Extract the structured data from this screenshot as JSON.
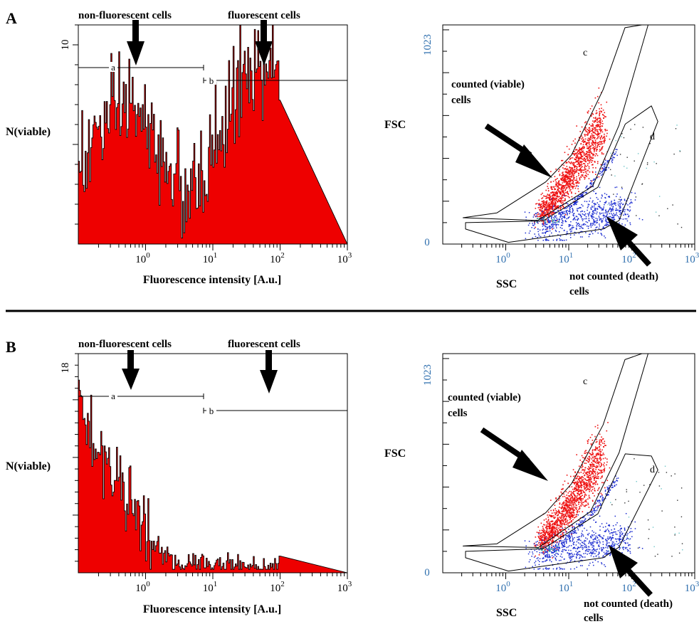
{
  "colors": {
    "histogram_fill": "#ee0000",
    "viable_dots": "#ee1111",
    "death_dots": "#1a2bd0",
    "scatter_axis_text": "#2f6fae",
    "axis": "#000000"
  },
  "separator": true,
  "panels": [
    {
      "letter": "A",
      "histogram": {
        "ylabel": "N(viable)",
        "xlabel": "Fluorescence intensity [A.u.]",
        "ymax_label": "10",
        "x_ticks": [
          {
            "base": "10",
            "exp": "0"
          },
          {
            "base": "10",
            "exp": "1"
          },
          {
            "base": "10",
            "exp": "2"
          },
          {
            "base": "10",
            "exp": "3"
          }
        ],
        "arrow_labels": [
          "non-fluorescent cells",
          "fluorescent cells"
        ],
        "gate_labels": [
          "a",
          "b"
        ]
      },
      "scatter": {
        "ylabel": "FSC",
        "xlabel": "SSC",
        "y_ticks": [
          "0",
          "1023"
        ],
        "x_ticks": [
          {
            "base": "10",
            "exp": "0"
          },
          {
            "base": "10",
            "exp": "1"
          },
          {
            "base": "10",
            "exp": "2"
          },
          {
            "base": "10",
            "exp": "3"
          }
        ],
        "gate_labels": [
          "c",
          "d"
        ],
        "counted_label": [
          "counted (viable)",
          "cells"
        ],
        "not_counted_label": [
          "not counted (death)",
          "cells"
        ]
      }
    },
    {
      "letter": "B",
      "histogram": {
        "ylabel": "N(viable)",
        "xlabel": "Fluorescence intensity [A.u.]",
        "ymax_label": "18",
        "x_ticks": [
          {
            "base": "10",
            "exp": "0"
          },
          {
            "base": "10",
            "exp": "1"
          },
          {
            "base": "10",
            "exp": "2"
          },
          {
            "base": "10",
            "exp": "3"
          }
        ],
        "arrow_labels": [
          "non-fluorescent cells",
          "fluorescent cells"
        ],
        "gate_labels": [
          "a",
          "b"
        ]
      },
      "scatter": {
        "ylabel": "FSC",
        "xlabel": "SSC",
        "y_ticks": [
          "0",
          "1023"
        ],
        "x_ticks": [
          {
            "base": "10",
            "exp": "0"
          },
          {
            "base": "10",
            "exp": "1"
          },
          {
            "base": "10",
            "exp": "2"
          },
          {
            "base": "10",
            "exp": "3"
          }
        ],
        "gate_labels": [
          "c",
          "d"
        ],
        "counted_label": [
          "counted (viable)",
          "cells"
        ],
        "not_counted_label": [
          "not counted (death)",
          "cells"
        ]
      }
    }
  ],
  "chart_data": [
    {
      "type": "bar",
      "panel": "A",
      "xlabel": "Fluorescence intensity [A.u.]",
      "ylabel": "N(viable)",
      "x_scale": "log",
      "xlim": [
        0.1,
        1000
      ],
      "ylim": [
        0,
        11
      ],
      "gates": [
        {
          "name": "a",
          "x_range": [
            0.1,
            8
          ]
        },
        {
          "name": "b",
          "x_range": [
            8,
            1000
          ]
        }
      ],
      "bins_log_start": -0.95,
      "bins_log_step": 0.1,
      "values": [
        4.6,
        4.1,
        5.7,
        6.0,
        5.7,
        6.4,
        6.8,
        7.2,
        7.0,
        6.1,
        5.3,
        4.8,
        4.3,
        4.4,
        3.2,
        2.2,
        2.6,
        2.4,
        3.4,
        4.3,
        5.1,
        6.1,
        6.3,
        7.8,
        8.4,
        8.5,
        9.1,
        8.6,
        8.6,
        7.8
      ],
      "annotations": [
        "non-fluorescent cells",
        "fluorescent cells"
      ]
    },
    {
      "type": "scatter",
      "panel": "A",
      "xlabel": "SSC",
      "ylabel": "FSC",
      "x_scale": "log",
      "xlim": [
        0.1,
        1000
      ],
      "ylim": [
        0,
        1023
      ],
      "gates": [
        {
          "name": "c",
          "label": "counted (viable) cells",
          "polygon": [
            [
              0.21,
              123
            ],
            [
              3.2,
              110
            ],
            [
              24,
              270
            ],
            [
              63,
              555
            ],
            [
              182,
              1023
            ],
            [
              145,
              1045
            ],
            [
              78,
              1010
            ],
            [
              35,
              720
            ],
            [
              11,
              415
            ],
            [
              4.3,
              290
            ],
            [
              0.72,
              145
            ]
          ]
        },
        {
          "name": "d",
          "label": "not counted (death) cells",
          "polygon": [
            [
              0.23,
              100
            ],
            [
              3.9,
              108
            ],
            [
              29,
              265
            ],
            [
              79,
              560
            ],
            [
              205,
              645
            ],
            [
              260,
              572
            ],
            [
              63,
              110
            ],
            [
              35,
              70
            ],
            [
              1.1,
              8
            ],
            [
              0.23,
              70
            ]
          ]
        }
      ],
      "series": [
        {
          "name": "c",
          "color": "#ee1111",
          "points": [
            [
              3.6,
              120
            ],
            [
              5,
              170
            ],
            [
              7,
              230
            ],
            [
              10,
              300
            ],
            [
              14,
              380
            ],
            [
              20,
              450
            ],
            [
              30,
              520
            ]
          ]
        },
        {
          "name": "d",
          "color": "#1a2bd0",
          "points": [
            [
              2.2,
              95
            ],
            [
              4,
              80
            ],
            [
              8,
              60
            ],
            [
              15,
              130
            ],
            [
              25,
              160
            ],
            [
              40,
              200
            ],
            [
              60,
              250
            ]
          ]
        }
      ]
    },
    {
      "type": "bar",
      "panel": "B",
      "xlabel": "Fluorescence intensity [A.u.]",
      "ylabel": "N(viable)",
      "x_scale": "log",
      "xlim": [
        0.1,
        1000
      ],
      "ylim": [
        0,
        19
      ],
      "gates": [
        {
          "name": "a",
          "x_range": [
            0.1,
            8
          ]
        },
        {
          "name": "b",
          "x_range": [
            8,
            1000
          ]
        }
      ],
      "bins_log_start": -0.95,
      "bins_log_step": 0.1,
      "values": [
        14.5,
        13.0,
        11.2,
        10.0,
        9.0,
        9.0,
        7.8,
        6.3,
        5.5,
        4.8,
        3.8,
        2.3,
        1.4,
        1.0,
        0.9,
        0.8,
        0.9,
        0.8,
        0.9,
        0.7,
        1.0,
        0.7,
        0.8,
        0.6,
        0.7,
        0.6,
        0.5,
        0.5,
        0.5,
        0.4
      ],
      "annotations": [
        "non-fluorescent cells",
        "fluorescent cells"
      ]
    },
    {
      "type": "scatter",
      "panel": "B",
      "xlabel": "SSC",
      "ylabel": "FSC",
      "x_scale": "log",
      "xlim": [
        0.1,
        1000
      ],
      "ylim": [
        0,
        1023
      ],
      "gates": [
        {
          "name": "c",
          "label": "counted (viable) cells",
          "polygon": [
            [
              0.21,
              125
            ],
            [
              3.3,
              118
            ],
            [
              22,
              285
            ],
            [
              63,
              560
            ],
            [
              182,
              1023
            ],
            [
              145,
              1035
            ],
            [
              78,
              995
            ],
            [
              35,
              690
            ],
            [
              11,
              415
            ],
            [
              4.3,
              280
            ],
            [
              0.72,
              135
            ]
          ]
        },
        {
          "name": "d",
          "label": "not counted (death) cells",
          "polygon": [
            [
              0.23,
              100
            ],
            [
              3.9,
              112
            ],
            [
              29,
              275
            ],
            [
              79,
              555
            ],
            [
              205,
              545
            ],
            [
              260,
              480
            ],
            [
              63,
              120
            ],
            [
              35,
              70
            ],
            [
              1.1,
              8
            ],
            [
              0.23,
              70
            ]
          ]
        }
      ],
      "series": [
        {
          "name": "c",
          "color": "#ee1111",
          "points": [
            [
              3.6,
              120
            ],
            [
              5,
              170
            ],
            [
              7,
              230
            ],
            [
              10,
              300
            ],
            [
              14,
              380
            ],
            [
              20,
              450
            ],
            [
              30,
              520
            ]
          ]
        },
        {
          "name": "d",
          "color": "#1a2bd0",
          "points": [
            [
              2.2,
              95
            ],
            [
              4,
              80
            ],
            [
              8,
              60
            ],
            [
              15,
              130
            ],
            [
              25,
              160
            ],
            [
              40,
              200
            ],
            [
              60,
              250
            ]
          ]
        }
      ]
    }
  ]
}
